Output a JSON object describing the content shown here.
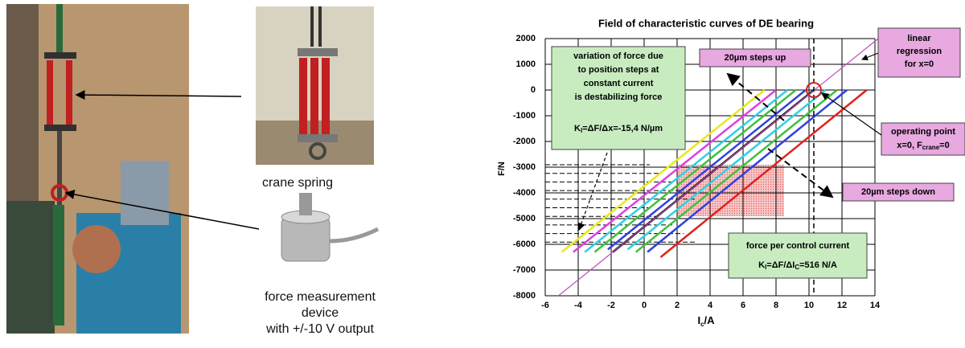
{
  "captions": {
    "crane": "crane spring",
    "device": [
      "force measurement",
      "device",
      "with +/-10 V output"
    ]
  },
  "chart_data": {
    "type": "line",
    "title": "Field of characteristic curves of DE bearing",
    "x_label": {
      "main": "I",
      "sub": "c",
      "rest": "/A"
    },
    "y_label": "F/N",
    "xlim": [
      -6,
      14
    ],
    "xticks": [
      -6,
      -4,
      -2,
      0,
      2,
      4,
      6,
      8,
      10,
      12,
      14
    ],
    "ylim": [
      -8000,
      2000
    ],
    "yticks": [
      -8000,
      -7000,
      -6000,
      -5000,
      -4000,
      -3000,
      -2000,
      -1000,
      0,
      1000,
      2000
    ],
    "grid": true,
    "series": [
      {
        "color": "#e8e820",
        "x": [
          -5.0,
          7.3
        ],
        "values": [
          -6300,
          0
        ]
      },
      {
        "color": "#e040e0",
        "x": [
          -4.3,
          8.0
        ],
        "values": [
          -6300,
          0
        ]
      },
      {
        "color": "#30d0e0",
        "x": [
          -3.6,
          8.7
        ],
        "values": [
          -6300,
          0
        ]
      },
      {
        "color": "#40c040",
        "x": [
          -3.0,
          9.2
        ],
        "values": [
          -6300,
          0
        ]
      },
      {
        "color": "#3040e0",
        "x": [
          -2.2,
          9.8
        ],
        "values": [
          -6200,
          0
        ]
      },
      {
        "color": "#000000",
        "x": [
          -1.9,
          10.3
        ],
        "values": [
          -6300,
          0
        ]
      },
      {
        "color": "#30d0e0",
        "x": [
          -1.0,
          11.0
        ],
        "values": [
          -6200,
          0
        ]
      },
      {
        "color": "#40c040",
        "x": [
          -0.5,
          11.7
        ],
        "values": [
          -6300,
          0
        ]
      },
      {
        "color": "#3040e0",
        "x": [
          0.2,
          12.3
        ],
        "values": [
          -6300,
          0
        ]
      },
      {
        "color": "#e02020",
        "x": [
          1.0,
          13.5
        ],
        "values": [
          -6500,
          0
        ]
      },
      {
        "color": "#c050c0",
        "x": [
          -5.2,
          14.2
        ],
        "values": [
          -8000,
          2000
        ]
      }
    ],
    "annotations": {
      "variation": [
        "variation of force due",
        "to position steps at",
        "constant current",
        "is destabilizing force"
      ],
      "kx": {
        "main": "K",
        "sub": "I",
        "rest": "=ΔF/Δx=-15,4 N/µm"
      },
      "steps_up": "20µm steps up",
      "regression": [
        "linear",
        "regression",
        "for x=0"
      ],
      "operating": {
        "line1": "operating point",
        "main": "x=0, F",
        "sub": "crane",
        "rest": "=0"
      },
      "steps_down": "20µm steps down",
      "force": "force per control current",
      "ki": {
        "main": "K",
        "sub": "I",
        "rest": "=ΔF/ΔI",
        "sub2": "C",
        "rest2": "=516 N/A"
      }
    }
  }
}
